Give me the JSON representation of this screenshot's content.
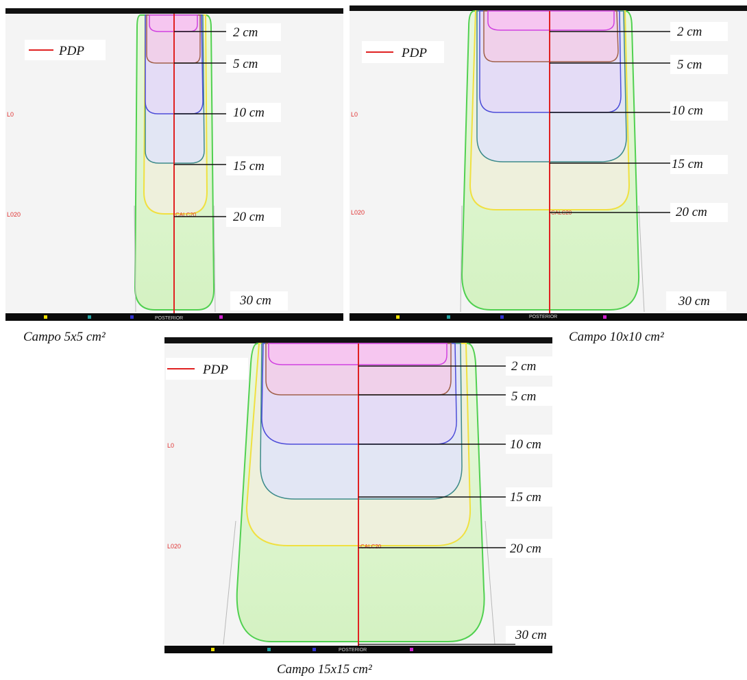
{
  "panels": [
    {
      "id": "p5",
      "caption": "Campo 5x5 cm²",
      "legend": "PDP",
      "depths": [
        "2 cm",
        "5 cm",
        "10 cm",
        "15 cm",
        "20 cm",
        "30 cm"
      ],
      "side_marks": [
        "L0",
        "L020"
      ],
      "axis_marks": [
        "CALC20",
        "POSTERIOR"
      ]
    },
    {
      "id": "p10",
      "caption": "Campo 10x10 cm²",
      "legend": "PDP",
      "depths": [
        "2 cm",
        "5 cm",
        "10 cm",
        "15 cm",
        "20 cm",
        "30 cm"
      ],
      "side_marks": [
        "L0",
        "L020"
      ],
      "axis_marks": [
        "CALC20",
        "POSTERIOR"
      ]
    },
    {
      "id": "p15",
      "caption": "Campo 15x15 cm²",
      "legend": "PDP",
      "depths": [
        "2 cm",
        "5 cm",
        "10 cm",
        "15 cm",
        "20 cm",
        "30 cm"
      ],
      "side_marks": [
        "L0",
        "L020"
      ],
      "axis_marks": [
        "CALC20",
        "POSTERIOR"
      ]
    }
  ],
  "colors": {
    "pdp_line": "#e02020",
    "iso_magenta": "#d040e0",
    "iso_brown": "#a0604a",
    "iso_blue": "#4c4cd8",
    "iso_teal": "#3c8a8a",
    "iso_yellow": "#f0e040",
    "iso_green": "#50d050"
  }
}
